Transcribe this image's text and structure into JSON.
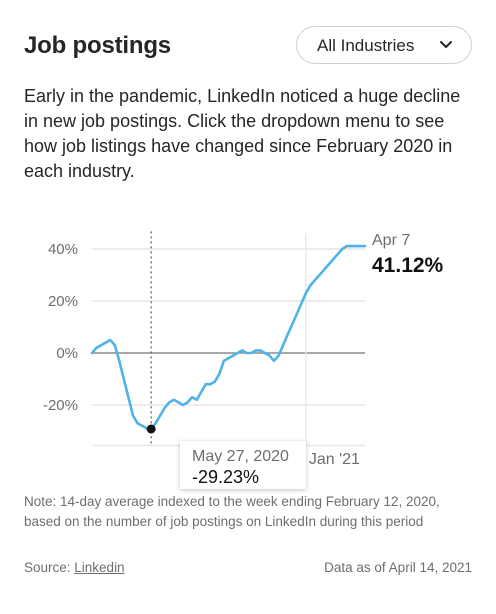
{
  "header": {
    "title": "Job postings",
    "dropdown_selected": "All Industries"
  },
  "description": "Early in the pandemic, LinkedIn noticed a huge decline in new job postings. Click the dropdown menu to see how job listings have changed since February 2020 in each industry.",
  "chart_data": {
    "type": "line",
    "title": "",
    "xlabel": "",
    "ylabel": "",
    "y_unit": "%",
    "ylim": [
      -34,
      46
    ],
    "y_ticks": [
      {
        "value": 40,
        "label": "40%"
      },
      {
        "value": 20,
        "label": "20%"
      },
      {
        "value": 0,
        "label": "0%"
      },
      {
        "value": -20,
        "label": "-20%"
      }
    ],
    "x_tick_labels": [
      {
        "label": "Jan '21",
        "position_week": 47
      }
    ],
    "grid": true,
    "series_color": "#4eb3e8",
    "x_weeks_since_feb12_2020": [
      0,
      1,
      2,
      3,
      4,
      5,
      6,
      7,
      8,
      9,
      10,
      11,
      12,
      13,
      14,
      15,
      16,
      17,
      18,
      19,
      20,
      21,
      22,
      23,
      24,
      25,
      26,
      27,
      28,
      29,
      30,
      31,
      32,
      33,
      34,
      35,
      36,
      37,
      38,
      39,
      40,
      41,
      42,
      43,
      44,
      45,
      46,
      47,
      48,
      49,
      50,
      51,
      52,
      53,
      54,
      55,
      56,
      57,
      58,
      59,
      60
    ],
    "values": [
      0,
      2,
      3,
      4,
      5,
      3,
      -3,
      -10,
      -17,
      -24,
      -27,
      -28,
      -29,
      -29.23,
      -27,
      -24,
      -21,
      -19,
      -18,
      -19,
      -20,
      -19,
      -17,
      -18,
      -15,
      -12,
      -12,
      -11,
      -8,
      -3,
      -2,
      -1,
      0,
      1,
      0,
      0,
      1,
      1,
      0,
      -1,
      -3,
      -1,
      3,
      7,
      11,
      15,
      19,
      23,
      26,
      28,
      30,
      32,
      34,
      36,
      38,
      40,
      41.12,
      41.12,
      41.12,
      41.12,
      41.12
    ],
    "highlight": {
      "date": "May 27, 2020",
      "value_label": "-29.23%",
      "value": -29.23,
      "week": 13
    },
    "end": {
      "date": "Apr 7",
      "value_label": "41.12%",
      "value": 41.12
    }
  },
  "note": "Note: 14-day average indexed to the week ending February 12, 2020, based on the number of job postings on LinkedIn during this period",
  "footer": {
    "source_prefix": "Source: ",
    "source_link": "Linkedin",
    "as_of": "Data as of April 14, 2021"
  }
}
